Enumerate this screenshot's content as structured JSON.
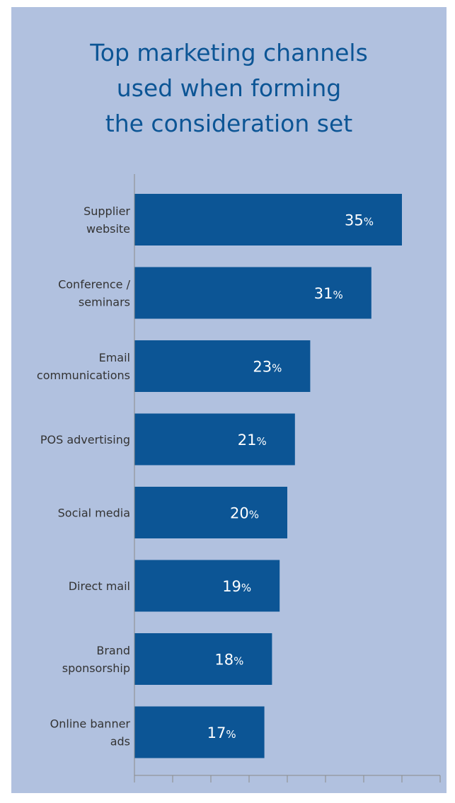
{
  "title_lines": [
    "Top marketing channels",
    "used when forming",
    "the consideration set"
  ],
  "colors": {
    "background": "#b1c1df",
    "bar": "#0c5595",
    "title": "#0c5595",
    "axis": "#8a8a8a"
  },
  "chart_data": {
    "type": "bar",
    "orientation": "horizontal",
    "title": "Top marketing channels used when forming the consideration set",
    "categories": [
      [
        "Supplier",
        "website"
      ],
      [
        "Conference /",
        "seminars"
      ],
      [
        "Email",
        "communications"
      ],
      [
        "POS advertising"
      ],
      [
        "Social media"
      ],
      [
        "Direct mail"
      ],
      [
        "Brand",
        "sponsorship"
      ],
      [
        "Online banner",
        "ads"
      ]
    ],
    "values": [
      35,
      31,
      23,
      21,
      20,
      19,
      18,
      17
    ],
    "value_suffix": "%",
    "xlim": [
      0,
      40
    ],
    "x_ticks": [
      0,
      5,
      10,
      15,
      20,
      25,
      30,
      35,
      40
    ],
    "grid": false,
    "legend": "none"
  }
}
